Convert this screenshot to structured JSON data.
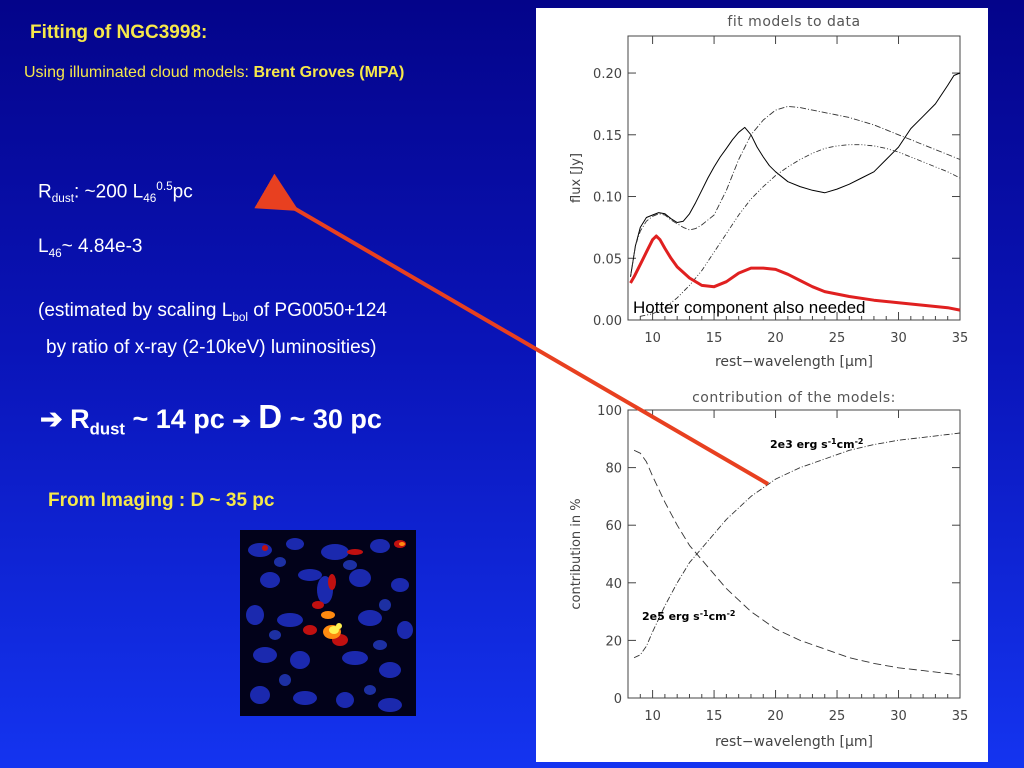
{
  "slide": {
    "title": "Fitting of NGC3998:",
    "subtitle_prefix": "Using illuminated cloud models: ",
    "subtitle_author": "Brent Groves (MPA)",
    "rdust_label": "R",
    "rdust_sub": "dust",
    "rdust_text": ": ~200 L",
    "rdust_sub2": "46",
    "rdust_sup": "0.5",
    "rdust_unit": "pc",
    "l46_label": "L",
    "l46_sub": "46",
    "l46_value": "~ 4.84e-3",
    "estimate_line1_a": "(estimated by scaling L",
    "estimate_line1_sub": "bol",
    "estimate_line1_b": " of PG0050+124",
    "estimate_line2": "by ratio of  x-ray (2-10keV) luminosities)",
    "result_arrow1": "➔",
    "result_r": "R",
    "result_r_sub": "dust",
    "result_r_val": " ~ 14 pc",
    "result_arrow2": "➔",
    "result_d": "D",
    "result_d_val": " ~ 30 pc",
    "imaging_text": "From Imaging : D ~ 35 pc",
    "hotter_note": "Hotter component also needed"
  },
  "colors": {
    "text_yellow": "#f6e84a",
    "annotation_red": "#e02020",
    "arrow_red": "#e84020"
  },
  "chart_data": [
    {
      "type": "line",
      "title": "fit models to data",
      "xlabel": "rest−wavelength [μm]",
      "ylabel": "flux [Jy]",
      "xlim": [
        8,
        35
      ],
      "ylim": [
        0.0,
        0.23
      ],
      "xticks": [
        10,
        15,
        20,
        25,
        30,
        35
      ],
      "yticks": [
        0.0,
        0.05,
        0.1,
        0.15,
        0.2
      ],
      "ytick_labels": [
        "0.00",
        "0.05",
        "0.10",
        "0.15",
        "0.20"
      ],
      "series": [
        {
          "style": "solid",
          "x": [
            8.2,
            8.6,
            9.0,
            9.5,
            10.0,
            10.5,
            11.0,
            11.5,
            12.0,
            12.5,
            13.0,
            13.5,
            14.0,
            14.5,
            15.0,
            15.5,
            16.0,
            16.5,
            17.0,
            17.5,
            18.0,
            18.5,
            19.0,
            19.5,
            20.0,
            21.0,
            22.0,
            23.0,
            24.0,
            25.0,
            26.0,
            27.0,
            28.0,
            29.0,
            30.0,
            31.0,
            32.0,
            33.0,
            34.0,
            34.5,
            35.0
          ],
          "values": [
            0.035,
            0.06,
            0.075,
            0.083,
            0.085,
            0.087,
            0.086,
            0.082,
            0.079,
            0.08,
            0.086,
            0.095,
            0.105,
            0.115,
            0.124,
            0.132,
            0.139,
            0.146,
            0.152,
            0.156,
            0.15,
            0.14,
            0.132,
            0.125,
            0.12,
            0.112,
            0.108,
            0.105,
            0.103,
            0.106,
            0.11,
            0.115,
            0.12,
            0.13,
            0.14,
            0.155,
            0.165,
            0.175,
            0.19,
            0.198,
            0.2
          ]
        },
        {
          "style": "dash-dot",
          "x": [
            8.2,
            8.6,
            9.0,
            9.5,
            10.0,
            10.5,
            11.0,
            11.5,
            12.0,
            12.5,
            13.0,
            13.5,
            14.0,
            15.0,
            16.0,
            17.0,
            18.0,
            19.0,
            20.0,
            21.0,
            22.0,
            23.0,
            24.0,
            25.0,
            26.0,
            27.0,
            28.0,
            29.0,
            30.0,
            31.0,
            32.0,
            33.0,
            34.0,
            35.0
          ],
          "values": [
            0.035,
            0.06,
            0.072,
            0.08,
            0.084,
            0.086,
            0.085,
            0.081,
            0.078,
            0.075,
            0.073,
            0.074,
            0.077,
            0.085,
            0.105,
            0.13,
            0.15,
            0.162,
            0.17,
            0.173,
            0.172,
            0.17,
            0.168,
            0.166,
            0.164,
            0.161,
            0.158,
            0.154,
            0.15,
            0.146,
            0.142,
            0.138,
            0.134,
            0.13
          ]
        },
        {
          "style": "dash-dot-2",
          "x": [
            9.0,
            10.0,
            11.0,
            12.0,
            13.0,
            14.0,
            15.0,
            16.0,
            17.0,
            18.0,
            19.0,
            20.0,
            21.0,
            22.0,
            23.0,
            24.0,
            25.0,
            26.0,
            27.0,
            28.0,
            29.0,
            30.0,
            31.0,
            32.0,
            33.0,
            34.0,
            35.0
          ],
          "values": [
            0.003,
            0.005,
            0.01,
            0.018,
            0.028,
            0.04,
            0.055,
            0.07,
            0.085,
            0.098,
            0.108,
            0.117,
            0.124,
            0.13,
            0.135,
            0.139,
            0.141,
            0.142,
            0.142,
            0.141,
            0.139,
            0.136,
            0.132,
            0.128,
            0.124,
            0.12,
            0.115
          ]
        },
        {
          "style": "red-thick",
          "x": [
            8.2,
            8.5,
            9.0,
            9.5,
            10.0,
            10.3,
            10.6,
            11.0,
            11.5,
            12.0,
            13.0,
            14.0,
            15.0,
            16.0,
            17.0,
            18.0,
            19.0,
            20.0,
            21.0,
            22.0,
            23.0,
            24.0,
            26.0,
            28.0,
            30.0,
            32.0,
            34.0,
            35.0
          ],
          "values": [
            0.03,
            0.035,
            0.045,
            0.055,
            0.065,
            0.068,
            0.065,
            0.058,
            0.05,
            0.043,
            0.034,
            0.028,
            0.027,
            0.031,
            0.038,
            0.042,
            0.042,
            0.041,
            0.037,
            0.032,
            0.027,
            0.023,
            0.019,
            0.016,
            0.014,
            0.012,
            0.01,
            0.008
          ]
        }
      ]
    },
    {
      "type": "line",
      "title": "contribution of the models:",
      "xlabel": "rest−wavelength [μm]",
      "ylabel": "contribution in %",
      "xlim": [
        8,
        35
      ],
      "ylim": [
        0,
        100
      ],
      "xticks": [
        10,
        15,
        20,
        25,
        30,
        35
      ],
      "yticks": [
        0,
        20,
        40,
        60,
        80,
        100
      ],
      "series": [
        {
          "name": "2e3 erg s-1cm-2",
          "style": "dash-dot",
          "x": [
            8.5,
            9.0,
            9.5,
            10.0,
            11.0,
            12.0,
            13.0,
            14.0,
            15.0,
            16.0,
            17.0,
            18.0,
            19.0,
            20.0,
            22.0,
            24.0,
            26.0,
            28.0,
            30.0,
            32.0,
            34.0,
            35.0
          ],
          "values": [
            14,
            15,
            18,
            23,
            32,
            40,
            47,
            52,
            57,
            62,
            66,
            70,
            73,
            76,
            80,
            83,
            86,
            88,
            89.5,
            90.5,
            91.5,
            92
          ]
        },
        {
          "name": "2e5 erg s-1cm-2",
          "style": "dashed",
          "x": [
            8.5,
            9.0,
            9.5,
            10.0,
            11.0,
            12.0,
            13.0,
            14.0,
            15.0,
            16.0,
            17.0,
            18.0,
            19.0,
            20.0,
            22.0,
            24.0,
            26.0,
            28.0,
            30.0,
            32.0,
            34.0,
            35.0
          ],
          "values": [
            86,
            85,
            82,
            77,
            68,
            60,
            53,
            48,
            43,
            38,
            34,
            30,
            27,
            24,
            20,
            17,
            14,
            12,
            10.5,
            9.5,
            8.5,
            8
          ]
        }
      ],
      "labels": {
        "top": {
          "base": "2e3 erg s",
          "sup1": "-1",
          "mid": "cm",
          "sup2": "-2"
        },
        "bottom": {
          "base": "2e5 erg s",
          "sup1": "-1",
          "mid": "cm",
          "sup2": "-2"
        }
      }
    }
  ]
}
